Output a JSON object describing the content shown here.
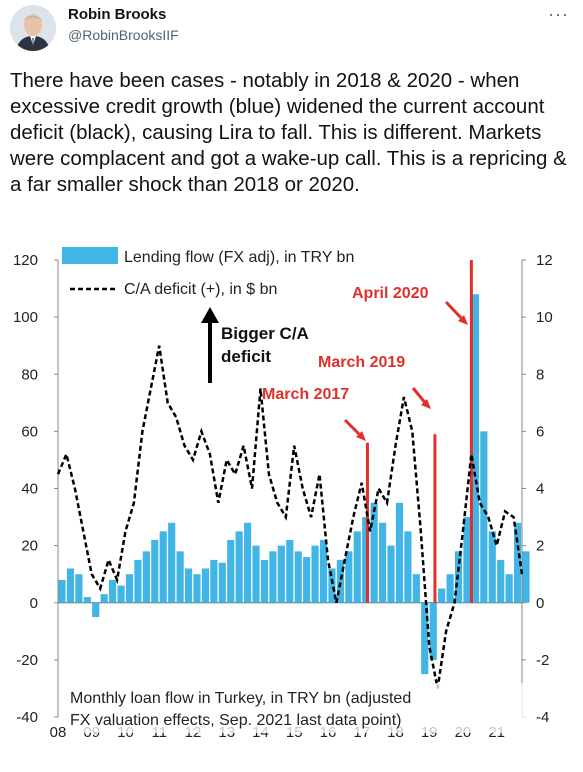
{
  "tweet": {
    "author_name": "Robin Brooks",
    "author_handle": "@RobinBrooksIIF",
    "more_icon": "more-options-icon",
    "text": "There have been cases - notably in 2018 & 2020 - when excessive credit growth (blue) widened the current account deficit (black), causing Lira to fall. This is different. Markets were complacent and got a wake-up call. This is a repricing & a far smaller shock than 2018 or 2020."
  },
  "chart_data": {
    "type": "bar",
    "title": "",
    "note": "Monthly loan flow in Turkey, in TRY bn (adjusted for FX valuation effects, Sep. 2021 last data point)",
    "legend": [
      "Lending flow (FX adj), in TRY bn",
      "C/A deficit (+), in $ bn"
    ],
    "left_axis": {
      "ylim": [
        -40,
        120
      ],
      "ticks": [
        "120",
        "100",
        "80",
        "60",
        "40",
        "20",
        "0",
        "-20",
        "-40"
      ]
    },
    "right_axis": {
      "ylim": [
        -4,
        12
      ],
      "ticks": [
        "12",
        "10",
        "8",
        "6",
        "4",
        "2",
        "0",
        "-2",
        "-4"
      ]
    },
    "x_ticks": [
      "08",
      "09",
      "10",
      "11",
      "12",
      "13",
      "14",
      "15",
      "16",
      "17",
      "18",
      "19",
      "20",
      "21"
    ],
    "x_range": [
      2008.0,
      2021.75
    ],
    "arrow_annotation": "Bigger C/A deficit",
    "event_labels": [
      {
        "text": "March 2017",
        "x": 2017.17
      },
      {
        "text": "March 2019",
        "x": 2019.17
      },
      {
        "text": "April 2020",
        "x": 2020.25
      }
    ],
    "event_lines": [
      {
        "x": 2017.17,
        "value": 56
      },
      {
        "x": 2019.17,
        "value": 59
      },
      {
        "x": 2020.25,
        "value": 120
      }
    ],
    "colors": {
      "lending": "#41b6e6",
      "ca_deficit": "#000000",
      "events": "#e0302b"
    },
    "series": [
      {
        "name": "Lending flow (FX adj), in TRY bn",
        "axis": "left",
        "x": [
          2008.0,
          2008.25,
          2008.5,
          2008.75,
          2009.0,
          2009.25,
          2009.5,
          2009.75,
          2010.0,
          2010.25,
          2010.5,
          2010.75,
          2011.0,
          2011.25,
          2011.5,
          2011.75,
          2012.0,
          2012.25,
          2012.5,
          2012.75,
          2013.0,
          2013.25,
          2013.5,
          2013.75,
          2014.0,
          2014.25,
          2014.5,
          2014.75,
          2015.0,
          2015.25,
          2015.5,
          2015.75,
          2016.0,
          2016.25,
          2016.5,
          2016.75,
          2017.0,
          2017.25,
          2017.5,
          2017.75,
          2018.0,
          2018.25,
          2018.5,
          2018.75,
          2019.0,
          2019.25,
          2019.5,
          2019.75,
          2020.0,
          2020.25,
          2020.5,
          2020.75,
          2021.0,
          2021.25,
          2021.5,
          2021.75
        ],
        "values": [
          8,
          12,
          10,
          2,
          -5,
          3,
          8,
          6,
          10,
          15,
          18,
          22,
          25,
          28,
          18,
          12,
          10,
          12,
          15,
          14,
          22,
          25,
          28,
          20,
          15,
          18,
          20,
          22,
          18,
          16,
          20,
          22,
          12,
          15,
          18,
          25,
          30,
          35,
          28,
          20,
          35,
          25,
          10,
          -25,
          -20,
          5,
          10,
          18,
          30,
          108,
          60,
          25,
          15,
          10,
          28,
          18
        ]
      },
      {
        "name": "C/A deficit (+), in $ bn",
        "axis": "right",
        "x": [
          2008.0,
          2008.25,
          2008.5,
          2008.75,
          2009.0,
          2009.25,
          2009.5,
          2009.75,
          2010.0,
          2010.25,
          2010.5,
          2010.75,
          2011.0,
          2011.25,
          2011.5,
          2011.75,
          2012.0,
          2012.25,
          2012.5,
          2012.75,
          2013.0,
          2013.25,
          2013.5,
          2013.75,
          2014.0,
          2014.25,
          2014.5,
          2014.75,
          2015.0,
          2015.25,
          2015.5,
          2015.75,
          2016.0,
          2016.25,
          2016.5,
          2016.75,
          2017.0,
          2017.25,
          2017.5,
          2017.75,
          2018.0,
          2018.25,
          2018.5,
          2018.75,
          2019.0,
          2019.25,
          2019.5,
          2019.75,
          2020.0,
          2020.25,
          2020.5,
          2020.75,
          2021.0,
          2021.25,
          2021.5,
          2021.75
        ],
        "values": [
          4.5,
          5.2,
          4.0,
          2.5,
          1.0,
          0.5,
          1.5,
          0.8,
          2.5,
          3.5,
          6.0,
          7.5,
          9.0,
          7.0,
          6.5,
          5.5,
          5.0,
          6.0,
          5.2,
          3.5,
          5.0,
          4.5,
          5.5,
          4.0,
          7.5,
          4.5,
          3.5,
          3.0,
          5.5,
          4.0,
          3.0,
          4.5,
          1.5,
          0.0,
          1.5,
          3.0,
          4.2,
          2.5,
          4.0,
          3.5,
          5.5,
          7.2,
          6.0,
          2.5,
          -1.5,
          -3.0,
          -1.0,
          0.0,
          2.5,
          5.2,
          3.5,
          3.0,
          2.0,
          3.2,
          3.0,
          1.0
        ]
      }
    ]
  }
}
